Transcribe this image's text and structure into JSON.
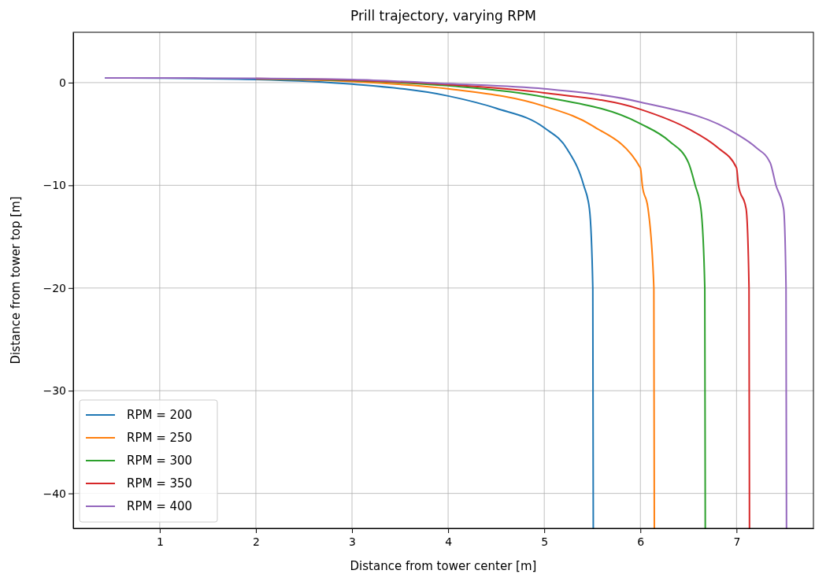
{
  "chart_data": {
    "type": "line",
    "title": "Prill trajectory, varying RPM",
    "xlabel": "Distance from tower center [m]",
    "ylabel": "Distance from tower top [m]",
    "xlim": [
      0.1,
      7.8
    ],
    "ylim": [
      -43.4,
      4.9
    ],
    "xticks": [
      1,
      2,
      3,
      4,
      5,
      6,
      7
    ],
    "yticks": [
      0,
      -10,
      -20,
      -30,
      -40
    ],
    "grid": true,
    "legend": "bottom left",
    "series": [
      {
        "name": "RPM = 200",
        "color": "#1f77b4",
        "x": [
          0.43,
          1,
          2,
          3,
          4,
          4.5,
          5,
          5.24,
          5.41,
          5.47,
          5.505,
          5.51
        ],
        "values": [
          0.45,
          0.43,
          0.3,
          -0.15,
          -1.3,
          -2.5,
          -4.4,
          -6.5,
          -10,
          -12.3,
          -20,
          -43.4
        ]
      },
      {
        "name": "RPM = 250",
        "color": "#ff7f0e",
        "x": [
          2,
          3,
          4,
          5,
          5.5,
          6,
          6.02,
          6.08,
          6.14,
          6.145
        ],
        "values": [
          0.35,
          0.1,
          -0.6,
          -2.3,
          -4.2,
          -8.3,
          -10,
          -12.3,
          -20,
          -43.4
        ]
      },
      {
        "name": "RPM = 300",
        "color": "#2ca02c",
        "x": [
          2,
          3,
          4,
          5,
          6,
          6.3,
          6.5,
          6.57,
          6.63,
          6.67,
          6.675
        ],
        "values": [
          0.38,
          0.2,
          -0.3,
          -1.4,
          -4,
          -5.7,
          -7.8,
          -10,
          -12.3,
          -20,
          -43.4
        ]
      },
      {
        "name": "RPM = 350",
        "color": "#d62728",
        "x": [
          2,
          3,
          4,
          5,
          6,
          6.5,
          6.8,
          7,
          7.02,
          7.1,
          7.13,
          7.135
        ],
        "values": [
          0.4,
          0.25,
          -0.2,
          -1,
          -2.6,
          -4.5,
          -6.3,
          -8.3,
          -10,
          -12.3,
          -20,
          -43.4
        ]
      },
      {
        "name": "RPM = 400",
        "color": "#9467bd",
        "x": [
          0.43,
          1,
          2,
          3,
          4,
          5,
          6,
          7,
          7.2,
          7.35,
          7.41,
          7.49,
          7.515,
          7.52
        ],
        "values": [
          0.45,
          0.45,
          0.42,
          0.3,
          -0.1,
          -0.6,
          -1.9,
          -5,
          -6.3,
          -7.8,
          -10,
          -12.3,
          -20,
          -43.4
        ]
      }
    ]
  }
}
